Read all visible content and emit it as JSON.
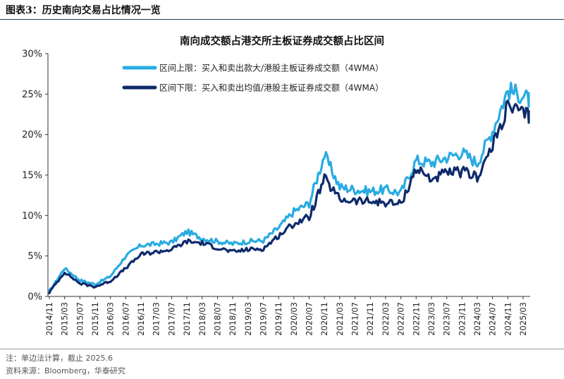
{
  "header": {
    "title": "图表3：历史南向交易占比情况一览"
  },
  "chart_data": {
    "type": "line",
    "title": "南向成交额占港交所主板证券成交额占比区间",
    "xlabel": "",
    "ylabel": "",
    "ylim": [
      0,
      30
    ],
    "yticks": [
      "0%",
      "5%",
      "10%",
      "15%",
      "20%",
      "25%",
      "30%"
    ],
    "xticks": [
      "2014/11",
      "2015/03",
      "2015/07",
      "2015/11",
      "2016/03",
      "2016/07",
      "2016/11",
      "2017/03",
      "2017/07",
      "2017/11",
      "2018/03",
      "2018/07",
      "2018/11",
      "2019/03",
      "2019/07",
      "2019/11",
      "2020/03",
      "2020/07",
      "2020/11",
      "2021/03",
      "2021/07",
      "2021/11",
      "2022/03",
      "2022/07",
      "2022/11",
      "2023/03",
      "2023/07",
      "2023/11",
      "2024/03",
      "2024/07",
      "2024/11",
      "2025/03"
    ],
    "x": [
      "2014/11",
      "2015/03",
      "2015/07",
      "2015/11",
      "2016/03",
      "2016/07",
      "2016/11",
      "2017/03",
      "2017/07",
      "2017/11",
      "2018/03",
      "2018/07",
      "2018/11",
      "2019/03",
      "2019/07",
      "2019/11",
      "2020/03",
      "2020/07",
      "2020/11",
      "2021/03",
      "2021/07",
      "2021/11",
      "2022/03",
      "2022/07",
      "2022/11",
      "2023/03",
      "2023/07",
      "2023/11",
      "2024/03",
      "2024/07",
      "2024/11",
      "2025/03",
      "2025/06"
    ],
    "grid": false,
    "legend_position": "top-left",
    "series": [
      {
        "name": "区间上限：买入和卖出款大/港股主板证券成交额（4WMA）",
        "color": "#29abe2",
        "values": [
          0.6,
          3.5,
          2.0,
          1.5,
          2.5,
          5.0,
          6.3,
          6.5,
          6.7,
          8.0,
          7.2,
          6.8,
          6.5,
          6.8,
          6.9,
          8.5,
          10.5,
          11.5,
          17.5,
          13.5,
          13.2,
          13.0,
          13.2,
          12.8,
          16.8,
          16.5,
          17.2,
          17.8,
          16.5,
          20.5,
          25.5,
          24.8,
          23.5
        ]
      },
      {
        "name": "区间下限：买入和卖出均值/港股主板证券成交额（4WMA）",
        "color": "#0d2a6b",
        "values": [
          0.5,
          3.0,
          1.6,
          1.2,
          1.9,
          3.5,
          5.2,
          5.5,
          5.8,
          6.8,
          6.6,
          6.0,
          5.5,
          5.8,
          5.9,
          7.5,
          9.0,
          9.8,
          14.5,
          12.0,
          11.8,
          11.7,
          11.6,
          11.4,
          15.8,
          14.5,
          15.2,
          15.4,
          14.8,
          18.5,
          23.5,
          22.5,
          22.2
        ]
      }
    ]
  },
  "footer": {
    "note": "注：单边法计算，截止 2025.6",
    "source": "资料来源：Bloomberg，华泰研究"
  }
}
